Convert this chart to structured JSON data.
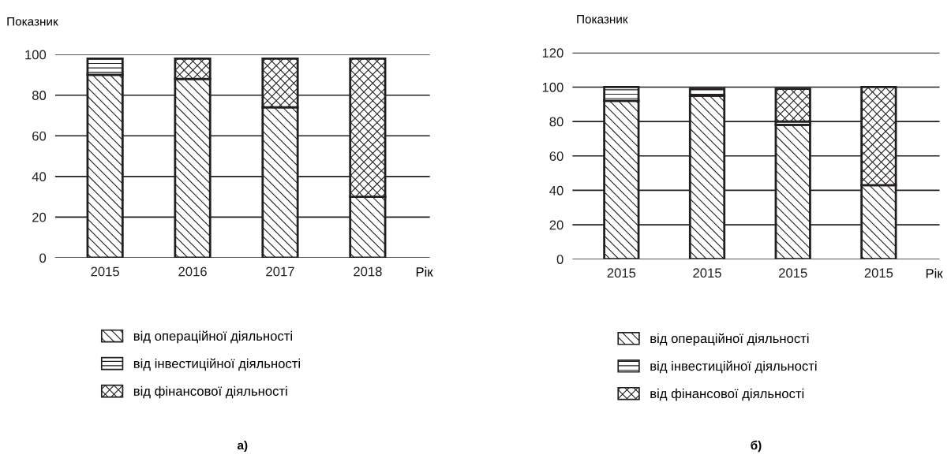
{
  "chart_data": [
    {
      "type": "bar",
      "stacked": true,
      "ylabel": "Показник",
      "xlabel": "Рік",
      "categories": [
        "2015",
        "2016",
        "2017",
        "2018"
      ],
      "ylim": [
        0,
        100
      ],
      "yticks": [
        0,
        20,
        40,
        60,
        80,
        100
      ],
      "grid": "y",
      "legend": "bottom",
      "annotations": [
        "а)"
      ],
      "series": [
        {
          "name": "від операційної діяльності",
          "color": "#231f20",
          "values": [
            90,
            88,
            74,
            30
          ]
        },
        {
          "name": "від інвестиційної діяльності",
          "color": "#231f20",
          "values": [
            8,
            0,
            0,
            0
          ]
        },
        {
          "name": "від фінансової діяльності",
          "color": "#231f20",
          "values": [
            0,
            10,
            24,
            68
          ]
        }
      ]
    },
    {
      "type": "bar",
      "stacked": true,
      "ylabel": "Показник",
      "xlabel": "Рік",
      "categories": [
        "2015",
        "2015",
        "2015",
        "2015"
      ],
      "ylim": [
        0,
        120
      ],
      "yticks": [
        0,
        20,
        40,
        60,
        80,
        100,
        120
      ],
      "grid": "y",
      "legend": "bottom",
      "annotations": [
        "б)"
      ],
      "series": [
        {
          "name": "від операційної діяльності",
          "color": "#231f20",
          "values": [
            92,
            95,
            78,
            43
          ]
        },
        {
          "name": "від інвестиційної діяльності",
          "color": "#231f20",
          "values": [
            8,
            4,
            2,
            0
          ]
        },
        {
          "name": "від фінансової діяльності",
          "color": "#231f20",
          "values": [
            0,
            0,
            19,
            57
          ]
        }
      ]
    }
  ]
}
